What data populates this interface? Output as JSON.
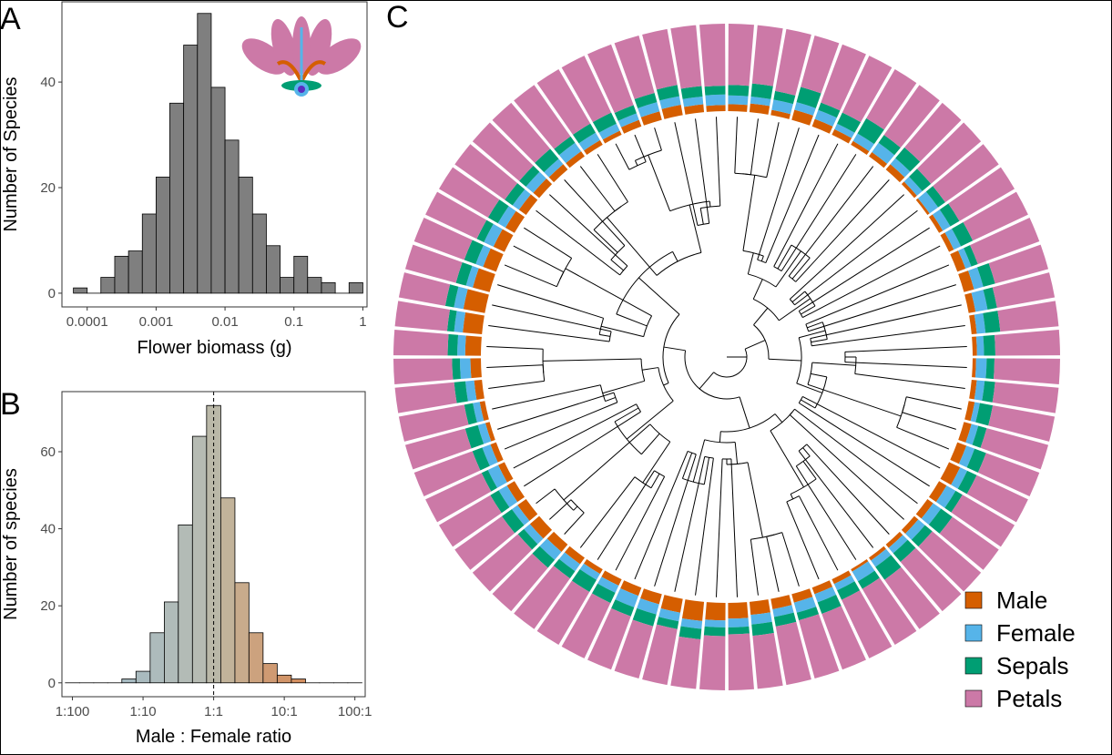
{
  "chart_data": [
    {
      "type": "histogram",
      "panel": "A",
      "x_label": "Flower biomass (g)",
      "y_label": "Number of Species",
      "log_x": true,
      "color": "#7f7f7f",
      "bins": [
        6.31e-05,
        0.0001,
        0.000158,
        0.000251,
        0.000398,
        0.000631,
        0.001,
        0.00158,
        0.00251,
        0.00398,
        0.00631,
        0.01,
        0.0158,
        0.0251,
        0.0398,
        0.0631,
        0.1,
        0.158,
        0.251,
        0.398,
        0.631,
        1
      ],
      "values": [
        1,
        0,
        3,
        7,
        8,
        15,
        22,
        36,
        47,
        53,
        39,
        29,
        22,
        15,
        9,
        3,
        7,
        3,
        2,
        0,
        2
      ],
      "xlim": [
        4.3e-05,
        1.15
      ],
      "xticks": [
        0.0001,
        0.001,
        0.01,
        0.1,
        1
      ],
      "ylim": [
        -2.6,
        55.2
      ],
      "yticks": [
        0,
        20,
        40
      ]
    },
    {
      "type": "histogram",
      "panel": "B",
      "x_label": "Male : Female ratio",
      "y_label": "Number of species",
      "log_x": true,
      "vline": 1,
      "bins": [
        0.00794,
        0.0126,
        0.02,
        0.0316,
        0.0501,
        0.0794,
        0.126,
        0.2,
        0.316,
        0.501,
        0.794,
        1.26,
        2,
        3.16,
        5.01,
        7.94,
        12.6,
        20,
        31.6,
        50.1,
        79.4,
        126
      ],
      "values": [
        0,
        0,
        0,
        0,
        1,
        3,
        13,
        21,
        41,
        64,
        72,
        48,
        26,
        13,
        5,
        2,
        1,
        0,
        0,
        0,
        0
      ],
      "colors": [
        "#9ab8cc",
        "#9db8c9",
        "#a0b9c6",
        "#a3b9c3",
        "#a6bac1",
        "#a9babe",
        "#adbbbc",
        "#b0bbb9",
        "#b3bbb6",
        "#b6bbb3",
        "#bab8a8",
        "#c2b39a",
        "#c8ab8c",
        "#cca27e",
        "#cf9a72",
        "#d19468",
        "#d38f60",
        "#d48b5a",
        "#d48b5a",
        "#d48b5a",
        "#d48b5a"
      ],
      "xlim": [
        0.0071,
        140
      ],
      "xticks": [
        {
          "value": 0.01,
          "label": "1:100"
        },
        {
          "value": 0.1,
          "label": "1:10"
        },
        {
          "value": 1,
          "label": "1:1"
        },
        {
          "value": 10,
          "label": "10:1"
        },
        {
          "value": 100,
          "label": "100:1"
        }
      ],
      "ylim": [
        -3.6,
        75.6
      ],
      "yticks": [
        0,
        20,
        40,
        60
      ]
    },
    {
      "type": "circular_bar",
      "panel": "C",
      "legend": "bottom-right",
      "ylim": [
        0,
        100
      ],
      "series": [
        {
          "name": "Male",
          "color": "#d55e00",
          "values": [
            8,
            10,
            6,
            12,
            9,
            7,
            5,
            6,
            8,
            4,
            3,
            5,
            6,
            10,
            12,
            8,
            6,
            5,
            4,
            6,
            7,
            9,
            11,
            14,
            10,
            8,
            6,
            5,
            4,
            3,
            6,
            8,
            10,
            12,
            15,
            18,
            20,
            22,
            16,
            12,
            10,
            8,
            6,
            9,
            11,
            14,
            12,
            10,
            8,
            7,
            5,
            6,
            9,
            12,
            18,
            22,
            25,
            20,
            16,
            14,
            12,
            10,
            9,
            8,
            7,
            6,
            5,
            8,
            10,
            12,
            9,
            7
          ]
        },
        {
          "name": "Female",
          "color": "#56b4e9",
          "values": [
            10,
            8,
            12,
            9,
            11,
            7,
            10,
            13,
            9,
            8,
            12,
            10,
            9,
            7,
            11,
            14,
            10,
            8,
            12,
            9,
            6,
            8,
            10,
            9,
            12,
            11,
            10,
            8,
            9,
            13,
            8,
            10,
            12,
            9,
            11,
            10,
            8,
            9,
            10,
            12,
            14,
            9,
            8,
            10,
            12,
            9,
            8,
            11,
            13,
            10,
            9,
            8,
            10,
            12,
            9,
            10,
            11,
            8,
            9,
            12,
            10,
            9,
            11,
            8,
            12,
            10,
            9,
            8,
            11,
            10,
            9,
            12
          ]
        },
        {
          "name": "Sepals",
          "color": "#009e73",
          "values": [
            12,
            15,
            10,
            18,
            9,
            14,
            20,
            11,
            16,
            13,
            10,
            12,
            15,
            8,
            14,
            11,
            17,
            13,
            9,
            12,
            15,
            10,
            14,
            12,
            9,
            16,
            11,
            13,
            18,
            10,
            12,
            14,
            9,
            11,
            13,
            8,
            10,
            12,
            9,
            14,
            11,
            13,
            16,
            10,
            12,
            9,
            14,
            11,
            8,
            12,
            15,
            10,
            13,
            9,
            11,
            8,
            10,
            12,
            14,
            9,
            13,
            11,
            10,
            15,
            9,
            12,
            14,
            10,
            11,
            13,
            12,
            10
          ]
        },
        {
          "name": "Petals",
          "color": "#cc79a7",
          "values": [
            70,
            67,
            72,
            61,
            71,
            72,
            65,
            70,
            67,
            75,
            75,
            73,
            70,
            75,
            63,
            67,
            67,
            74,
            75,
            73,
            72,
            73,
            65,
            65,
            69,
            65,
            73,
            74,
            69,
            74,
            74,
            68,
            69,
            68,
            61,
            64,
            62,
            57,
            65,
            62,
            65,
            70,
            70,
            71,
            65,
            68,
            66,
            68,
            71,
            71,
            71,
            76,
            68,
            67,
            62,
            60,
            54,
            60,
            61,
            65,
            65,
            70,
            70,
            69,
            72,
            72,
            72,
            74,
            68,
            65,
            70,
            71
          ]
        }
      ]
    }
  ]
}
